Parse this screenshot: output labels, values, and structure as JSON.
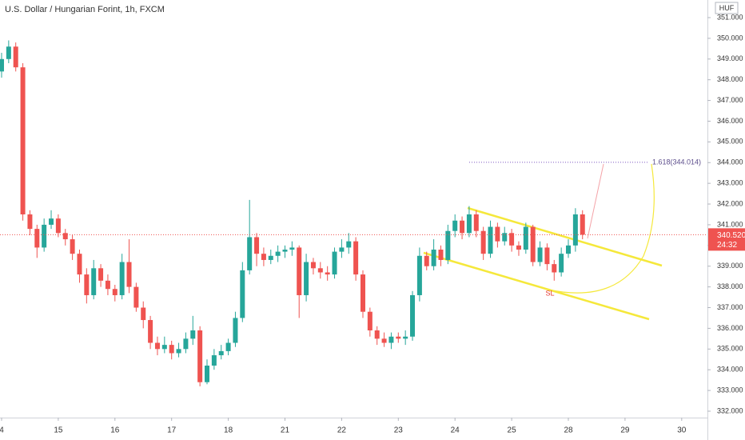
{
  "chart_data": {
    "type": "candlestick",
    "title": "U.S. Dollar / Hungarian Forint, 1h, FXCM",
    "currency": "HUF",
    "up_color": "#26a69a",
    "down_color": "#ef5350",
    "x": [
      0,
      0.125,
      0.25,
      0.375,
      0.5,
      0.625,
      0.75,
      0.875,
      1,
      1.125,
      1.25,
      1.375,
      1.5,
      1.625,
      1.75,
      1.875,
      2,
      2.125,
      2.25,
      2.375,
      2.5,
      2.625,
      2.75,
      2.875,
      3,
      3.125,
      3.25,
      3.375,
      3.5,
      3.625,
      3.75,
      3.875,
      4,
      4.125,
      4.25,
      4.375,
      4.5,
      4.625,
      4.75,
      4.875,
      5,
      5.125,
      5.25,
      5.375,
      5.5,
      5.625,
      5.75,
      5.875,
      6,
      6.125,
      6.25,
      6.375,
      6.5,
      6.625,
      6.75,
      6.875,
      7,
      7.125,
      7.25,
      7.375,
      7.5,
      7.625,
      7.75,
      7.875,
      8,
      8.125,
      8.25,
      8.375,
      8.5,
      8.625,
      8.75,
      8.875,
      9,
      9.125,
      9.25,
      9.375,
      9.5,
      9.625,
      9.75,
      9.875,
      10,
      10.125,
      10.25
    ],
    "open": [
      348.4,
      349.0,
      349.6,
      348.6,
      341.5,
      340.8,
      339.9,
      341.0,
      341.3,
      340.6,
      340.3,
      339.6,
      338.6,
      337.6,
      338.9,
      338.3,
      337.9,
      337.6,
      339.2,
      338.0,
      337.0,
      336.4,
      335.3,
      335.0,
      335.2,
      334.8,
      335.0,
      335.5,
      335.9,
      333.4,
      334.2,
      334.7,
      334.9,
      335.3,
      336.5,
      338.8,
      340.4,
      339.6,
      339.3,
      339.5,
      339.7,
      339.8,
      339.9,
      337.6,
      339.2,
      338.9,
      338.7,
      338.6,
      339.7,
      339.9,
      340.2,
      338.6,
      336.8,
      335.9,
      335.5,
      335.3,
      335.6,
      335.5,
      335.6,
      337.6,
      339.5,
      339.0,
      339.8,
      339.3,
      340.7,
      341.2,
      340.6,
      341.5,
      340.7,
      339.6,
      340.9,
      340.2,
      340.6,
      340.0,
      339.8,
      340.9,
      339.2,
      339.9,
      339.1,
      338.7,
      339.6,
      340.0,
      341.5
    ],
    "high": [
      349.3,
      349.9,
      349.8,
      348.8,
      341.7,
      341.0,
      341.3,
      341.7,
      341.5,
      340.8,
      340.5,
      339.8,
      338.9,
      339.3,
      339.1,
      338.6,
      338.1,
      339.6,
      340.3,
      338.2,
      337.3,
      336.6,
      335.6,
      335.6,
      335.4,
      335.3,
      335.8,
      336.6,
      336.1,
      334.5,
      335.0,
      335.2,
      335.5,
      336.8,
      339.2,
      342.2,
      340.6,
      339.9,
      339.8,
      340.0,
      340.0,
      340.2,
      340.0,
      339.6,
      339.4,
      339.2,
      339.0,
      339.9,
      340.3,
      340.6,
      340.4,
      338.8,
      337.0,
      336.1,
      335.8,
      335.8,
      335.8,
      335.9,
      337.8,
      339.9,
      339.7,
      340.3,
      340.0,
      341.0,
      341.5,
      341.4,
      341.9,
      341.7,
      340.9,
      341.2,
      341.1,
      340.9,
      340.8,
      340.2,
      341.1,
      341.0,
      340.2,
      340.1,
      339.3,
      339.9,
      340.3,
      341.8,
      341.7
    ],
    "low": [
      348.1,
      348.8,
      348.4,
      341.2,
      340.5,
      339.4,
      339.7,
      340.8,
      340.4,
      340.0,
      339.3,
      338.2,
      337.2,
      337.4,
      338.0,
      337.6,
      337.3,
      337.4,
      337.7,
      336.8,
      336.0,
      335.0,
      334.7,
      334.8,
      334.5,
      334.6,
      334.8,
      335.2,
      333.2,
      333.3,
      334.0,
      334.5,
      334.7,
      335.1,
      336.3,
      338.6,
      339.0,
      339.0,
      339.1,
      339.2,
      339.4,
      339.5,
      336.5,
      337.3,
      338.6,
      338.4,
      338.3,
      338.4,
      339.4,
      339.6,
      338.3,
      336.5,
      335.6,
      335.2,
      335.1,
      335.0,
      335.3,
      335.2,
      335.4,
      337.3,
      338.8,
      338.8,
      339.0,
      339.1,
      340.4,
      340.3,
      340.4,
      340.4,
      339.3,
      339.4,
      339.9,
      340.0,
      339.7,
      339.5,
      339.6,
      339.0,
      339.0,
      338.8,
      338.3,
      338.5,
      339.4,
      339.7,
      340.3
    ],
    "close": [
      349.0,
      349.6,
      348.6,
      341.5,
      340.8,
      339.9,
      341.0,
      341.3,
      340.6,
      340.3,
      339.6,
      338.6,
      337.6,
      338.9,
      338.3,
      337.9,
      337.6,
      339.2,
      338.0,
      337.0,
      336.4,
      335.3,
      335.0,
      335.2,
      334.8,
      335.0,
      335.5,
      335.9,
      333.4,
      334.2,
      334.7,
      334.9,
      335.3,
      336.5,
      338.8,
      340.4,
      339.6,
      339.3,
      339.5,
      339.7,
      339.8,
      339.9,
      337.6,
      339.2,
      338.9,
      338.7,
      338.6,
      339.7,
      339.9,
      340.2,
      338.6,
      336.8,
      335.9,
      335.5,
      335.3,
      335.6,
      335.5,
      335.6,
      337.6,
      339.5,
      339.0,
      339.8,
      339.3,
      340.7,
      341.2,
      340.6,
      341.5,
      340.7,
      339.6,
      340.9,
      340.2,
      340.6,
      340.0,
      339.8,
      340.9,
      339.2,
      339.9,
      339.1,
      338.7,
      339.6,
      340.0,
      341.5,
      340.52
    ],
    "last_price": {
      "value": 340.52,
      "label": "340.520"
    },
    "countdown": "24:32",
    "fib_level": {
      "value": 344.014,
      "label": "1.618(344.014)"
    },
    "annotation": "SL",
    "xlim": [
      -0.028,
      12.454
    ],
    "xticks": [
      {
        "value": 0,
        "label": "4"
      },
      {
        "value": 1,
        "label": "15"
      },
      {
        "value": 2,
        "label": "16"
      },
      {
        "value": 3,
        "label": "17"
      },
      {
        "value": 4,
        "label": "18"
      },
      {
        "value": 5,
        "label": "21"
      },
      {
        "value": 6,
        "label": "22"
      },
      {
        "value": 7,
        "label": "23"
      },
      {
        "value": 8,
        "label": "24"
      },
      {
        "value": 9,
        "label": "25"
      },
      {
        "value": 10,
        "label": "28"
      },
      {
        "value": 11,
        "label": "29"
      },
      {
        "value": 12,
        "label": "30"
      }
    ],
    "ylim": [
      331.69,
      351.85
    ],
    "yticks": [
      {
        "value": 332,
        "label": "332.000"
      },
      {
        "value": 333,
        "label": "333.000"
      },
      {
        "value": 334,
        "label": "334.000"
      },
      {
        "value": 335,
        "label": "335.000"
      },
      {
        "value": 336,
        "label": "336.000"
      },
      {
        "value": 337,
        "label": "337.000"
      },
      {
        "value": 338,
        "label": "338.000"
      },
      {
        "value": 339,
        "label": "339.000"
      },
      {
        "value": 340,
        "label": "340.000"
      },
      {
        "value": 341,
        "label": "341.000"
      },
      {
        "value": 342,
        "label": "342.000"
      },
      {
        "value": 343,
        "label": "343.000"
      },
      {
        "value": 344,
        "label": "344.000"
      },
      {
        "value": 345,
        "label": "345.000"
      },
      {
        "value": 346,
        "label": "346.000"
      },
      {
        "value": 347,
        "label": "347.000"
      },
      {
        "value": 348,
        "label": "348.000"
      },
      {
        "value": 349,
        "label": "349.000"
      },
      {
        "value": 350,
        "label": "350.000"
      },
      {
        "value": 351,
        "label": "351.000"
      }
    ]
  }
}
